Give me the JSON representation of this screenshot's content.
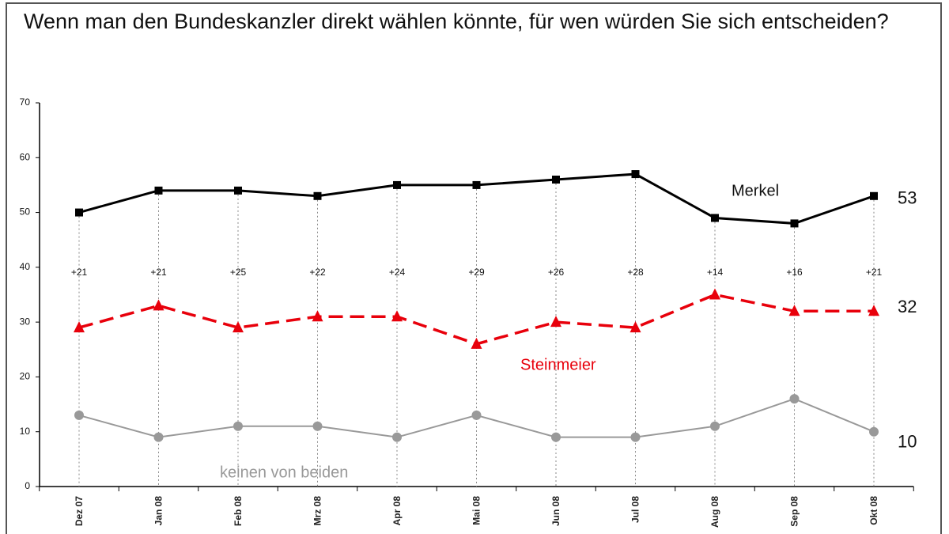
{
  "chart_data": {
    "type": "line",
    "title": "Wenn man den Bundeskanzler direkt wählen könnte, für wen würden Sie sich entscheiden?",
    "categories": [
      "Dez 07",
      "Jan 08",
      "Feb 08",
      "Mrz 08",
      "Apr 08",
      "Mai 08",
      "Jun 08",
      "Jul 08",
      "Aug 08",
      "Sep 08",
      "Okt 08"
    ],
    "series": [
      {
        "name": "Merkel",
        "color": "#000000",
        "marker": "square",
        "dashed": false,
        "values": [
          50,
          54,
          54,
          53,
          55,
          55,
          56,
          57,
          49,
          48,
          53
        ]
      },
      {
        "name": "Steinmeier",
        "color": "#e8000b",
        "marker": "triangle",
        "dashed": true,
        "values": [
          29,
          33,
          29,
          31,
          31,
          26,
          30,
          29,
          35,
          32,
          32
        ]
      },
      {
        "name": "keinen von beiden",
        "color": "#999999",
        "marker": "circle",
        "dashed": false,
        "values": [
          13,
          9,
          11,
          11,
          9,
          13,
          9,
          9,
          11,
          16,
          10
        ]
      }
    ],
    "difference_labels": [
      "+21",
      "+21",
      "+25",
      "+22",
      "+24",
      "+29",
      "+26",
      "+28",
      "+14",
      "+16",
      "+21"
    ],
    "ylim": [
      0,
      70
    ],
    "yticks": [
      0,
      10,
      20,
      30,
      40,
      50,
      60,
      70
    ]
  }
}
